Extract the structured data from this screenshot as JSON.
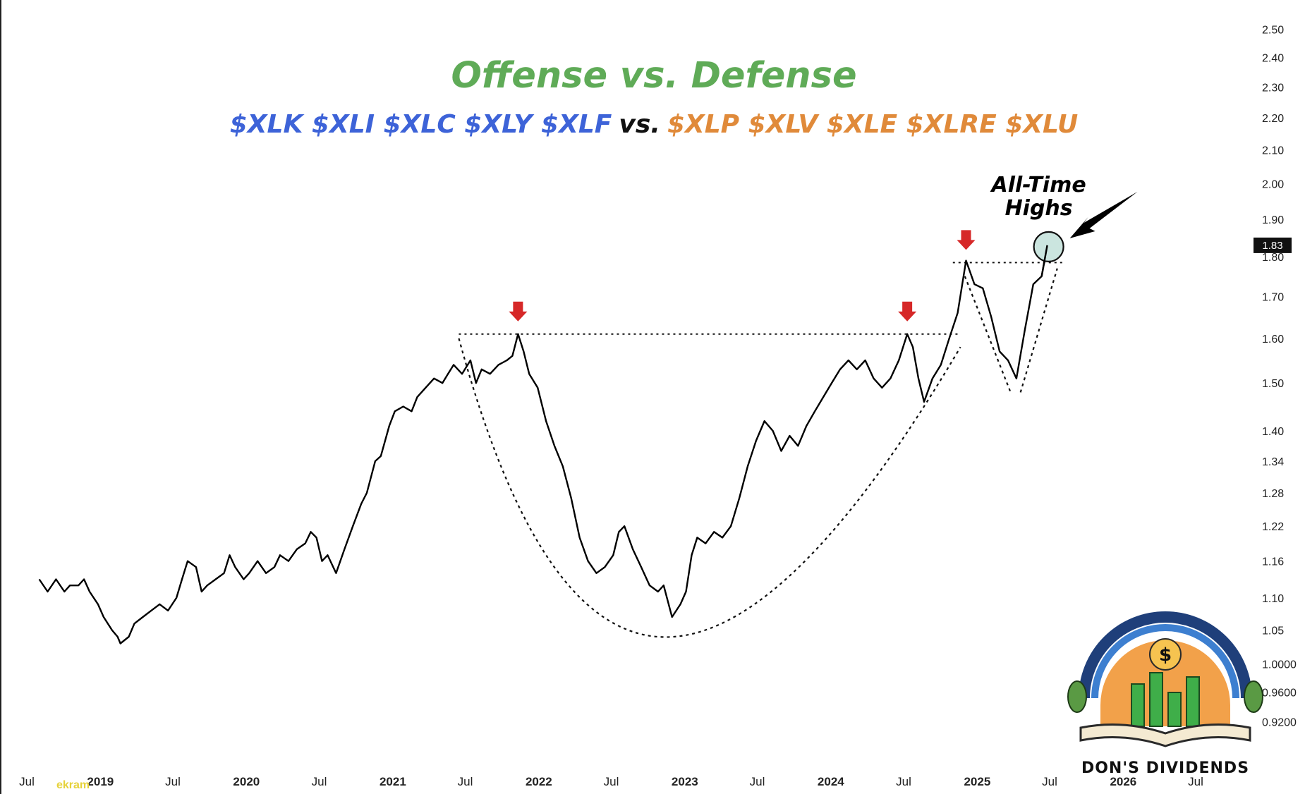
{
  "colors": {
    "title": "#5fab57",
    "offense": "#3d63d8",
    "vs": "#111111",
    "defense": "#e08a3a",
    "line": "#000000",
    "marker": "#d62828",
    "highlight": "#b9dcd4"
  },
  "chart_data": {
    "type": "line",
    "title": "Offense vs. Defense",
    "subtitle": {
      "offense": "$XLK $XLI $XLC $XLY $XLF",
      "vs": "vs.",
      "defense": "$XLP $XLV $XLE $XLRE $XLU"
    },
    "y_scale": "log",
    "ylim": [
      0.9,
      2.55
    ],
    "y_ticks": [
      "2.50",
      "2.40",
      "2.30",
      "2.20",
      "2.10",
      "2.00",
      "1.90",
      "1.80",
      "1.70",
      "1.60",
      "1.50",
      "1.40",
      "1.34",
      "1.28",
      "1.22",
      "1.16",
      "1.10",
      "1.05",
      "1.0000",
      "0.9600",
      "0.9200"
    ],
    "x_ticks": [
      {
        "label": "Jul",
        "date": "2018-07-01",
        "bold": false
      },
      {
        "label": "2019",
        "date": "2019-01-01",
        "bold": true
      },
      {
        "label": "Jul",
        "date": "2019-07-01",
        "bold": false
      },
      {
        "label": "2020",
        "date": "2020-01-01",
        "bold": true
      },
      {
        "label": "Jul",
        "date": "2020-07-01",
        "bold": false
      },
      {
        "label": "2021",
        "date": "2021-01-01",
        "bold": true
      },
      {
        "label": "Jul",
        "date": "2021-07-01",
        "bold": false
      },
      {
        "label": "2022",
        "date": "2022-01-01",
        "bold": true
      },
      {
        "label": "Jul",
        "date": "2022-07-01",
        "bold": false
      },
      {
        "label": "2023",
        "date": "2023-01-01",
        "bold": true
      },
      {
        "label": "Jul",
        "date": "2023-07-01",
        "bold": false
      },
      {
        "label": "2024",
        "date": "2024-01-01",
        "bold": true
      },
      {
        "label": "Jul",
        "date": "2024-07-01",
        "bold": false
      },
      {
        "label": "2025",
        "date": "2025-01-01",
        "bold": true
      },
      {
        "label": "Jul",
        "date": "2025-07-01",
        "bold": false
      },
      {
        "label": "2026",
        "date": "2026-01-01",
        "bold": true
      },
      {
        "label": "Jul",
        "date": "2026-07-01",
        "bold": false
      }
    ],
    "last_value_label": "1.83",
    "last_value": 1.83,
    "series": [
      {
        "points": [
          [
            "2018-08-01",
            1.13
          ],
          [
            "2018-08-22",
            1.11
          ],
          [
            "2018-09-12",
            1.13
          ],
          [
            "2018-10-03",
            1.11
          ],
          [
            "2018-10-17",
            1.12
          ],
          [
            "2018-11-07",
            1.12
          ],
          [
            "2018-11-21",
            1.13
          ],
          [
            "2018-12-05",
            1.11
          ],
          [
            "2018-12-26",
            1.09
          ],
          [
            "2019-01-09",
            1.07
          ],
          [
            "2019-01-30",
            1.05
          ],
          [
            "2019-02-13",
            1.04
          ],
          [
            "2019-02-20",
            1.03
          ],
          [
            "2019-03-13",
            1.04
          ],
          [
            "2019-03-27",
            1.06
          ],
          [
            "2019-04-17",
            1.07
          ],
          [
            "2019-05-08",
            1.08
          ],
          [
            "2019-05-29",
            1.09
          ],
          [
            "2019-06-19",
            1.08
          ],
          [
            "2019-07-10",
            1.1
          ],
          [
            "2019-07-24",
            1.13
          ],
          [
            "2019-08-07",
            1.16
          ],
          [
            "2019-08-28",
            1.15
          ],
          [
            "2019-09-11",
            1.11
          ],
          [
            "2019-09-25",
            1.12
          ],
          [
            "2019-10-16",
            1.13
          ],
          [
            "2019-11-06",
            1.14
          ],
          [
            "2019-11-20",
            1.17
          ],
          [
            "2019-12-04",
            1.15
          ],
          [
            "2019-12-25",
            1.13
          ],
          [
            "2020-01-08",
            1.14
          ],
          [
            "2020-01-29",
            1.16
          ],
          [
            "2020-02-19",
            1.14
          ],
          [
            "2020-03-11",
            1.15
          ],
          [
            "2020-03-25",
            1.17
          ],
          [
            "2020-04-15",
            1.16
          ],
          [
            "2020-05-06",
            1.18
          ],
          [
            "2020-05-27",
            1.19
          ],
          [
            "2020-06-10",
            1.21
          ],
          [
            "2020-06-24",
            1.2
          ],
          [
            "2020-07-08",
            1.16
          ],
          [
            "2020-07-22",
            1.17
          ],
          [
            "2020-08-12",
            1.14
          ],
          [
            "2020-09-02",
            1.18
          ],
          [
            "2020-09-23",
            1.22
          ],
          [
            "2020-10-14",
            1.26
          ],
          [
            "2020-10-28",
            1.28
          ],
          [
            "2020-11-18",
            1.34
          ],
          [
            "2020-12-02",
            1.35
          ],
          [
            "2020-12-23",
            1.41
          ],
          [
            "2021-01-06",
            1.44
          ],
          [
            "2021-01-27",
            1.45
          ],
          [
            "2021-02-17",
            1.44
          ],
          [
            "2021-03-03",
            1.47
          ],
          [
            "2021-03-24",
            1.49
          ],
          [
            "2021-04-14",
            1.51
          ],
          [
            "2021-05-05",
            1.5
          ],
          [
            "2021-05-19",
            1.52
          ],
          [
            "2021-06-02",
            1.54
          ],
          [
            "2021-06-23",
            1.52
          ],
          [
            "2021-07-14",
            1.55
          ],
          [
            "2021-07-28",
            1.5
          ],
          [
            "2021-08-11",
            1.53
          ],
          [
            "2021-09-01",
            1.52
          ],
          [
            "2021-09-22",
            1.54
          ],
          [
            "2021-10-13",
            1.55
          ],
          [
            "2021-10-27",
            1.56
          ],
          [
            "2021-11-10",
            1.61
          ],
          [
            "2021-11-24",
            1.57
          ],
          [
            "2021-12-08",
            1.52
          ],
          [
            "2021-12-29",
            1.49
          ],
          [
            "2022-01-19",
            1.42
          ],
          [
            "2022-02-09",
            1.37
          ],
          [
            "2022-03-02",
            1.33
          ],
          [
            "2022-03-23",
            1.27
          ],
          [
            "2022-04-13",
            1.2
          ],
          [
            "2022-05-04",
            1.16
          ],
          [
            "2022-05-25",
            1.14
          ],
          [
            "2022-06-15",
            1.15
          ],
          [
            "2022-07-06",
            1.17
          ],
          [
            "2022-07-20",
            1.21
          ],
          [
            "2022-08-03",
            1.22
          ],
          [
            "2022-08-24",
            1.18
          ],
          [
            "2022-09-14",
            1.15
          ],
          [
            "2022-10-05",
            1.12
          ],
          [
            "2022-10-26",
            1.11
          ],
          [
            "2022-11-09",
            1.12
          ],
          [
            "2022-11-30",
            1.07
          ],
          [
            "2022-12-21",
            1.09
          ],
          [
            "2023-01-04",
            1.11
          ],
          [
            "2023-01-18",
            1.17
          ],
          [
            "2023-02-01",
            1.2
          ],
          [
            "2023-02-22",
            1.19
          ],
          [
            "2023-03-15",
            1.21
          ],
          [
            "2023-04-05",
            1.2
          ],
          [
            "2023-04-26",
            1.22
          ],
          [
            "2023-05-17",
            1.27
          ],
          [
            "2023-06-07",
            1.33
          ],
          [
            "2023-06-28",
            1.38
          ],
          [
            "2023-07-19",
            1.42
          ],
          [
            "2023-08-09",
            1.4
          ],
          [
            "2023-08-30",
            1.36
          ],
          [
            "2023-09-20",
            1.39
          ],
          [
            "2023-10-11",
            1.37
          ],
          [
            "2023-11-01",
            1.41
          ],
          [
            "2023-11-22",
            1.44
          ],
          [
            "2023-12-13",
            1.47
          ],
          [
            "2024-01-03",
            1.5
          ],
          [
            "2024-01-24",
            1.53
          ],
          [
            "2024-02-14",
            1.55
          ],
          [
            "2024-03-06",
            1.53
          ],
          [
            "2024-03-27",
            1.55
          ],
          [
            "2024-04-17",
            1.51
          ],
          [
            "2024-05-08",
            1.49
          ],
          [
            "2024-05-29",
            1.51
          ],
          [
            "2024-06-19",
            1.55
          ],
          [
            "2024-07-10",
            1.61
          ],
          [
            "2024-07-24",
            1.58
          ],
          [
            "2024-08-07",
            1.51
          ],
          [
            "2024-08-21",
            1.46
          ],
          [
            "2024-09-11",
            1.51
          ],
          [
            "2024-10-02",
            1.54
          ],
          [
            "2024-10-23",
            1.6
          ],
          [
            "2024-11-13",
            1.66
          ],
          [
            "2024-12-04",
            1.79
          ],
          [
            "2024-12-25",
            1.73
          ],
          [
            "2025-01-15",
            1.72
          ],
          [
            "2025-02-05",
            1.65
          ],
          [
            "2025-02-26",
            1.57
          ],
          [
            "2025-03-19",
            1.55
          ],
          [
            "2025-04-09",
            1.51
          ],
          [
            "2025-04-30",
            1.62
          ],
          [
            "2025-05-21",
            1.73
          ],
          [
            "2025-06-11",
            1.75
          ],
          [
            "2025-06-25",
            1.83
          ]
        ]
      }
    ],
    "annotations": {
      "resistance_level": 1.61,
      "upper_level": 1.785,
      "ath_text_line1": "All-Time",
      "ath_text_line2": "Highs",
      "peak_markers": [
        {
          "date": "2021-11-10",
          "value": 1.61
        },
        {
          "date": "2024-07-10",
          "value": 1.61
        },
        {
          "date": "2024-12-04",
          "value": 1.785
        }
      ]
    }
  },
  "watermark": {
    "text": "DON'S DIVIDENDS",
    "icon": "dollar-coin-icon"
  },
  "corner_watermark": "ekram"
}
